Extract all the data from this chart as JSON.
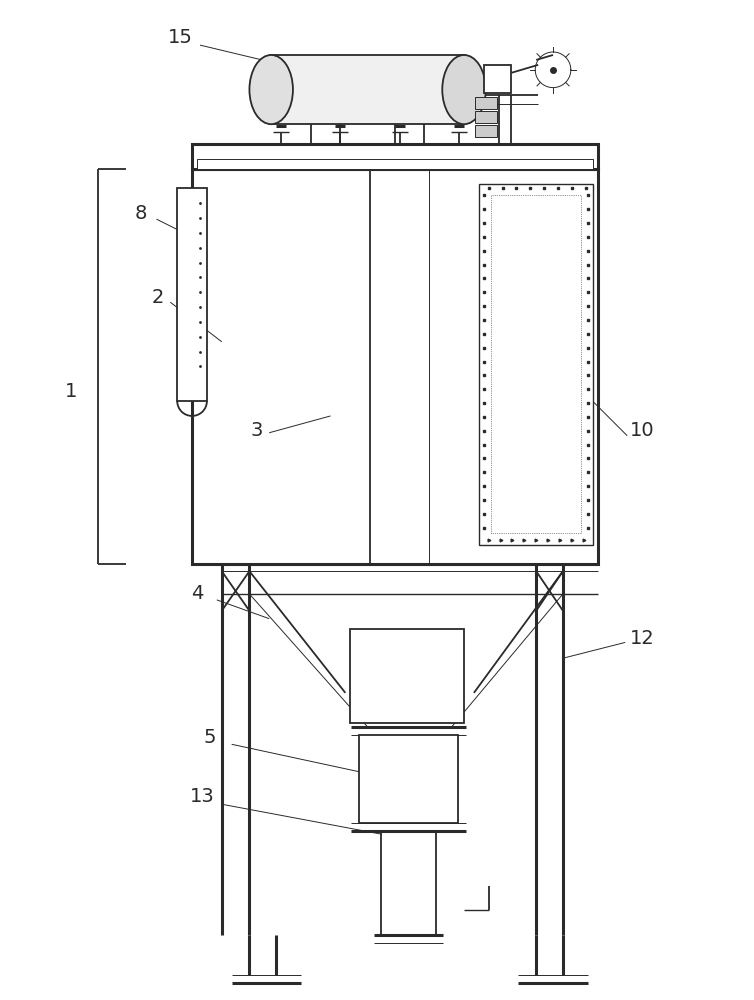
{
  "bg_color": "#ffffff",
  "line_color": "#2a2a2a",
  "lw": 1.3,
  "lw_thick": 2.2,
  "lw_thin": 0.7,
  "lw_med": 1.0
}
